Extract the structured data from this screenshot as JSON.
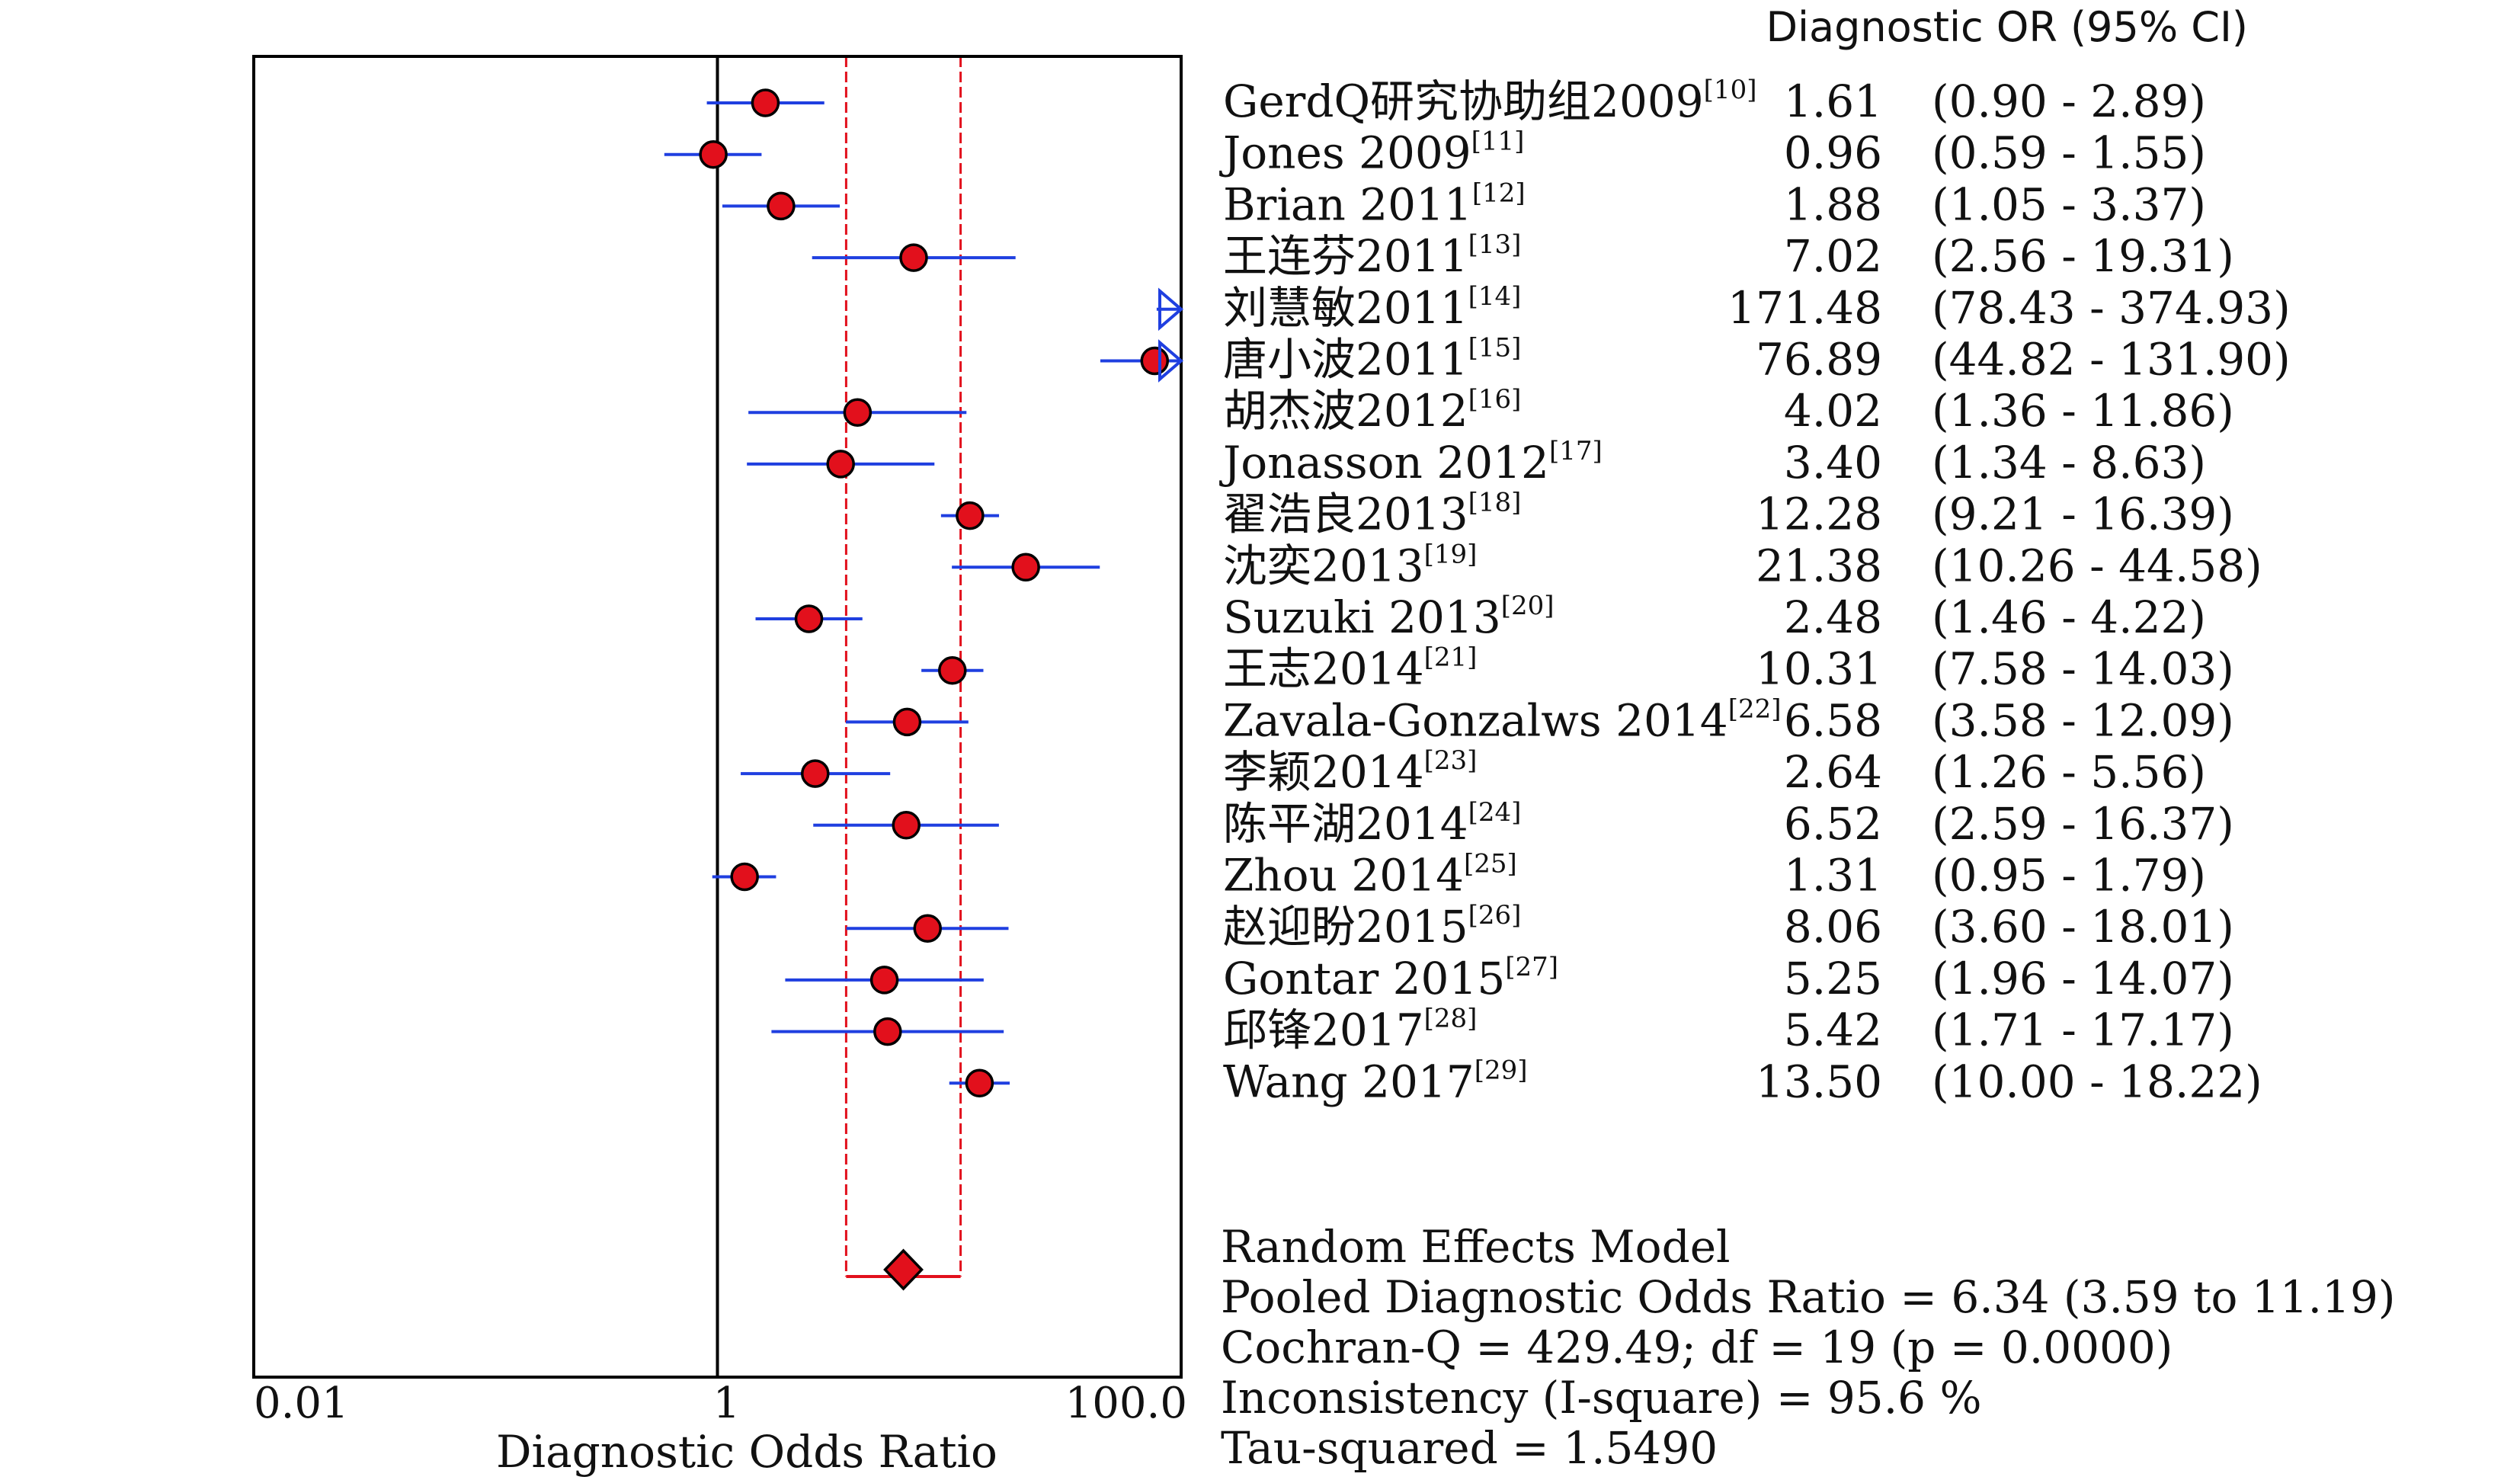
{
  "chart_data": {
    "type": "forest",
    "x_scale": "log",
    "xlabel": "Diagnostic Odds Ratio",
    "x_ticks": [
      {
        "value": 0.01,
        "label": "0.01"
      },
      {
        "value": 1,
        "label": "1"
      },
      {
        "value": 100,
        "label": "100.0"
      }
    ],
    "xlim": [
      0.01,
      100
    ],
    "reference_line": 1,
    "column_header": "Diagnostic OR (95% CI)",
    "colors": {
      "ci_line": "#1f3fe0",
      "point_fill": "#e2101c",
      "pooled_band": "#e2101c",
      "axis": "#000000"
    },
    "studies": [
      {
        "label": "GerdQ研究协助组2009",
        "ref": "[10]",
        "or": 1.61,
        "lo": 0.9,
        "hi": 2.89,
        "or_text": "1.61",
        "ci_text": "(0.90 - 2.89)"
      },
      {
        "label": "Jones 2009",
        "ref": "[11]",
        "or": 0.96,
        "lo": 0.59,
        "hi": 1.55,
        "or_text": "0.96",
        "ci_text": "(0.59 - 1.55)"
      },
      {
        "label": "Brian 2011",
        "ref": "[12]",
        "or": 1.88,
        "lo": 1.05,
        "hi": 3.37,
        "or_text": "1.88",
        "ci_text": "(1.05 - 3.37)"
      },
      {
        "label": "王连芬2011",
        "ref": "[13]",
        "or": 7.02,
        "lo": 2.56,
        "hi": 19.31,
        "or_text": "7.02",
        "ci_text": "(2.56 - 19.31)"
      },
      {
        "label": "刘慧敏2011",
        "ref": "[14]",
        "or": 171.48,
        "lo": 78.43,
        "hi": 374.93,
        "or_text": "171.48",
        "ci_text": "(78.43 - 374.93)"
      },
      {
        "label": "唐小波2011",
        "ref": "[15]",
        "or": 76.89,
        "lo": 44.82,
        "hi": 131.9,
        "or_text": "76.89",
        "ci_text": "(44.82 - 131.90)"
      },
      {
        "label": "胡杰波2012",
        "ref": "[16]",
        "or": 4.02,
        "lo": 1.36,
        "hi": 11.86,
        "or_text": "4.02",
        "ci_text": "(1.36 - 11.86)"
      },
      {
        "label": "Jonasson 2012",
        "ref": "[17]",
        "or": 3.4,
        "lo": 1.34,
        "hi": 8.63,
        "or_text": "3.40",
        "ci_text": "(1.34 - 8.63)"
      },
      {
        "label": "翟浩良2013",
        "ref": "[18]",
        "or": 12.28,
        "lo": 9.21,
        "hi": 16.39,
        "or_text": "12.28",
        "ci_text": "(9.21 - 16.39)"
      },
      {
        "label": "沈奕2013",
        "ref": "[19]",
        "or": 21.38,
        "lo": 10.26,
        "hi": 44.58,
        "or_text": "21.38",
        "ci_text": "(10.26 - 44.58)"
      },
      {
        "label": "Suzuki 2013",
        "ref": "[20]",
        "or": 2.48,
        "lo": 1.46,
        "hi": 4.22,
        "or_text": "2.48",
        "ci_text": "(1.46 - 4.22)"
      },
      {
        "label": "王志2014",
        "ref": "[21]",
        "or": 10.31,
        "lo": 7.58,
        "hi": 14.03,
        "or_text": "10.31",
        "ci_text": "(7.58 - 14.03)"
      },
      {
        "label": "Zavala-Gonzalws 2014",
        "ref": "[22]",
        "or": 6.58,
        "lo": 3.58,
        "hi": 12.09,
        "or_text": "6.58",
        "ci_text": "(3.58 - 12.09)"
      },
      {
        "label": "李颖2014",
        "ref": "[23]",
        "or": 2.64,
        "lo": 1.26,
        "hi": 5.56,
        "or_text": "2.64",
        "ci_text": "(1.26 - 5.56)"
      },
      {
        "label": "陈平湖2014",
        "ref": "[24]",
        "or": 6.52,
        "lo": 2.59,
        "hi": 16.37,
        "or_text": "6.52",
        "ci_text": "(2.59 - 16.37)"
      },
      {
        "label": "Zhou 2014",
        "ref": "[25]",
        "or": 1.31,
        "lo": 0.95,
        "hi": 1.79,
        "or_text": "1.31",
        "ci_text": "(0.95 - 1.79)"
      },
      {
        "label": "赵迎盼2015",
        "ref": "[26]",
        "or": 8.06,
        "lo": 3.6,
        "hi": 18.01,
        "or_text": "8.06",
        "ci_text": "(3.60 - 18.01)"
      },
      {
        "label": "Gontar 2015",
        "ref": "[27]",
        "or": 5.25,
        "lo": 1.96,
        "hi": 14.07,
        "or_text": "5.25",
        "ci_text": "(1.96 - 14.07)"
      },
      {
        "label": "邱锋2017",
        "ref": "[28]",
        "or": 5.42,
        "lo": 1.71,
        "hi": 17.17,
        "or_text": "5.42",
        "ci_text": "(1.71 - 17.17)"
      },
      {
        "label": "Wang 2017",
        "ref": "[29]",
        "or": 13.5,
        "lo": 10.0,
        "hi": 18.22,
        "or_text": "13.50",
        "ci_text": "(10.00 - 18.22)"
      }
    ],
    "pooled": {
      "or": 6.34,
      "lo": 3.59,
      "hi": 11.19
    },
    "summary_lines": [
      "Random Effects Model",
      "Pooled Diagnostic Odds Ratio = 6.34 (3.59 to 11.19)",
      "Cochran-Q = 429.49; df =  19 (p = 0.0000)",
      "Inconsistency (I-square) = 95.6 %",
      "Tau-squared = 1.5490"
    ]
  }
}
